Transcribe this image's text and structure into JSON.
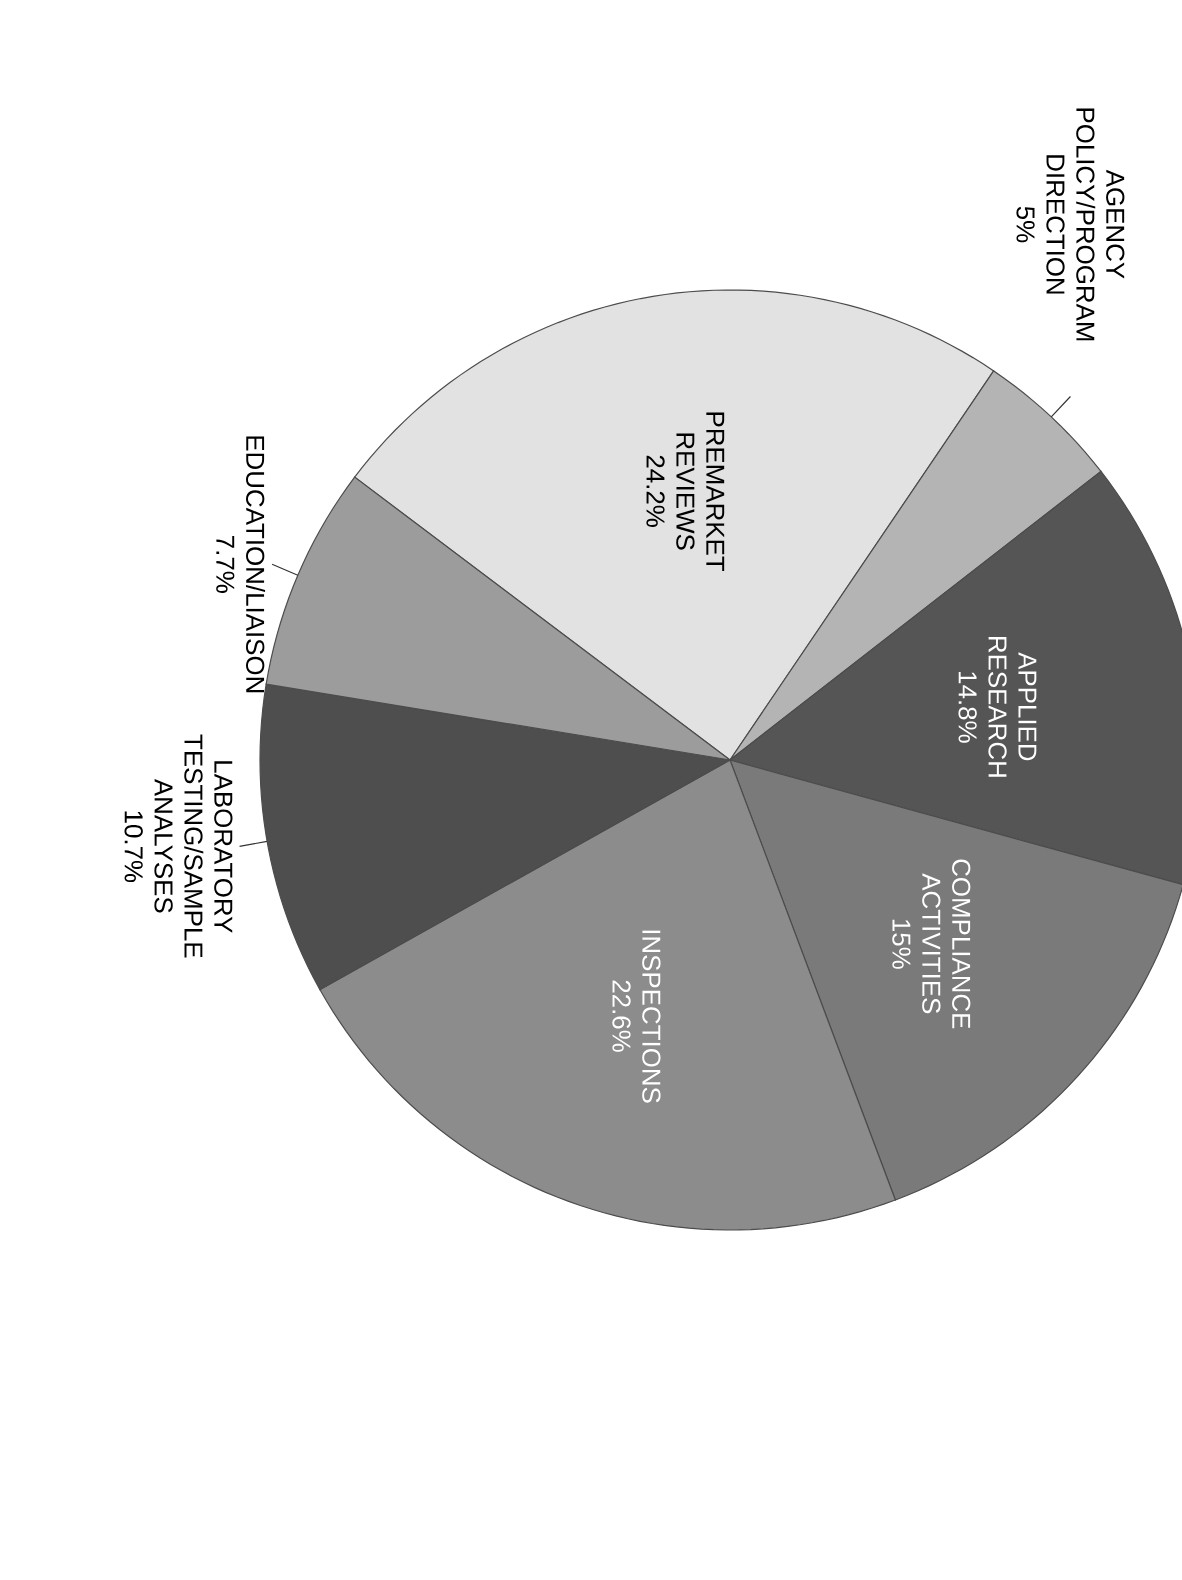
{
  "chart_data": {
    "type": "pie",
    "categories": [
      "PREMARKET REVIEWS",
      "AGENCY POLICY/PROGRAM DIRECTION",
      "APPLIED RESEARCH",
      "COMPLIANCE ACTIVITIES",
      "INSPECTIONS",
      "LABORATORY TESTING/SAMPLE ANALYSES",
      "EDUCATION/LIAISON"
    ],
    "values": [
      24.2,
      5,
      14.8,
      15,
      22.6,
      10.7,
      7.7
    ],
    "value_labels": [
      "24.2%",
      "5%",
      "14.8%",
      "15%",
      "22.6%",
      "10.7%",
      "7.7%"
    ],
    "colors": [
      "#e2e2e2",
      "#b4b4b4",
      "#555555",
      "#7a7a7a",
      "#8c8c8c",
      "#4e4e4e",
      "#9c9c9c"
    ]
  }
}
